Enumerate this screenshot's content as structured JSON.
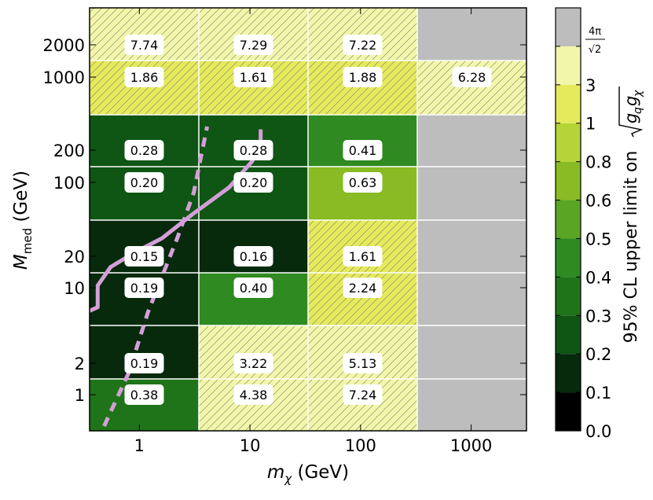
{
  "chart_data": {
    "type": "heatmap",
    "xlabel_main": "m",
    "xlabel_sub": "χ",
    "xlabel_unit": " (GeV)",
    "ylabel_main": "M",
    "ylabel_sub": "med",
    "ylabel_unit": " (GeV)",
    "x_scale": "log",
    "y_scale": "log",
    "x_ticks": [
      {
        "value": 1,
        "label": "1"
      },
      {
        "value": 10,
        "label": "10"
      },
      {
        "value": 100,
        "label": "100"
      },
      {
        "value": 1000,
        "label": "1000"
      }
    ],
    "y_ticks": [
      {
        "value": 1,
        "label": "1"
      },
      {
        "value": 2,
        "label": "2"
      },
      {
        "value": 10,
        "label": "10"
      },
      {
        "value": 20,
        "label": "20"
      },
      {
        "value": 100,
        "label": "100"
      },
      {
        "value": 200,
        "label": "200"
      },
      {
        "value": 1000,
        "label": "1000"
      },
      {
        "value": 2000,
        "label": "2000"
      }
    ],
    "cells": [
      {
        "mchi": 1,
        "mmed": 2000,
        "value": 7.74,
        "label": "7.74",
        "hatched": true
      },
      {
        "mchi": 10,
        "mmed": 2000,
        "value": 7.29,
        "label": "7.29",
        "hatched": true
      },
      {
        "mchi": 100,
        "mmed": 2000,
        "value": 7.22,
        "label": "7.22",
        "hatched": true
      },
      {
        "mchi": 1000,
        "mmed": 2000,
        "value": null,
        "label": "",
        "hatched": false
      },
      {
        "mchi": 1,
        "mmed": 1000,
        "value": 1.86,
        "label": "1.86",
        "hatched": true
      },
      {
        "mchi": 10,
        "mmed": 1000,
        "value": 1.61,
        "label": "1.61",
        "hatched": true
      },
      {
        "mchi": 100,
        "mmed": 1000,
        "value": 1.88,
        "label": "1.88",
        "hatched": true
      },
      {
        "mchi": 1000,
        "mmed": 1000,
        "value": 6.28,
        "label": "6.28",
        "hatched": true
      },
      {
        "mchi": 1,
        "mmed": 200,
        "value": 0.28,
        "label": "0.28",
        "hatched": false
      },
      {
        "mchi": 10,
        "mmed": 200,
        "value": 0.28,
        "label": "0.28",
        "hatched": false
      },
      {
        "mchi": 100,
        "mmed": 200,
        "value": 0.41,
        "label": "0.41",
        "hatched": false
      },
      {
        "mchi": 1000,
        "mmed": 200,
        "value": null,
        "label": "",
        "hatched": false
      },
      {
        "mchi": 1,
        "mmed": 100,
        "value": 0.2,
        "label": "0.20",
        "hatched": false
      },
      {
        "mchi": 10,
        "mmed": 100,
        "value": 0.2,
        "label": "0.20",
        "hatched": false
      },
      {
        "mchi": 100,
        "mmed": 100,
        "value": 0.63,
        "label": "0.63",
        "hatched": false
      },
      {
        "mchi": 1000,
        "mmed": 100,
        "value": null,
        "label": "",
        "hatched": false
      },
      {
        "mchi": 1,
        "mmed": 20,
        "value": 0.15,
        "label": "0.15",
        "hatched": false
      },
      {
        "mchi": 10,
        "mmed": 20,
        "value": 0.16,
        "label": "0.16",
        "hatched": false
      },
      {
        "mchi": 100,
        "mmed": 20,
        "value": 1.61,
        "label": "1.61",
        "hatched": true
      },
      {
        "mchi": 1000,
        "mmed": 20,
        "value": null,
        "label": "",
        "hatched": false
      },
      {
        "mchi": 1,
        "mmed": 10,
        "value": 0.19,
        "label": "0.19",
        "hatched": false
      },
      {
        "mchi": 10,
        "mmed": 10,
        "value": 0.4,
        "label": "0.40",
        "hatched": false
      },
      {
        "mchi": 100,
        "mmed": 10,
        "value": 2.24,
        "label": "2.24",
        "hatched": true
      },
      {
        "mchi": 1000,
        "mmed": 10,
        "value": null,
        "label": "",
        "hatched": false
      },
      {
        "mchi": 1,
        "mmed": 2,
        "value": 0.19,
        "label": "0.19",
        "hatched": false
      },
      {
        "mchi": 10,
        "mmed": 2,
        "value": 3.22,
        "label": "3.22",
        "hatched": true
      },
      {
        "mchi": 100,
        "mmed": 2,
        "value": 5.13,
        "label": "5.13",
        "hatched": true
      },
      {
        "mchi": 1000,
        "mmed": 2,
        "value": null,
        "label": "",
        "hatched": false
      },
      {
        "mchi": 1,
        "mmed": 1,
        "value": 0.38,
        "label": "0.38",
        "hatched": false
      },
      {
        "mchi": 10,
        "mmed": 1,
        "value": 4.38,
        "label": "4.38",
        "hatched": true
      },
      {
        "mchi": 100,
        "mmed": 1,
        "value": 7.24,
        "label": "7.24",
        "hatched": true
      },
      {
        "mchi": 1000,
        "mmed": 1,
        "value": null,
        "label": "",
        "hatched": false
      }
    ],
    "colorbar": {
      "label": "95% CL upper limit on ",
      "label_math": "√(g_q g_χ)",
      "levels": [
        {
          "from": "0.0",
          "to": "0.1",
          "color": "#000000"
        },
        {
          "from": "0.1",
          "to": "0.2",
          "color": "#062a0b"
        },
        {
          "from": "0.2",
          "to": "0.3",
          "color": "#0f5514"
        },
        {
          "from": "0.3",
          "to": "0.4",
          "color": "#1f7419"
        },
        {
          "from": "0.4",
          "to": "0.5",
          "color": "#2f8a21"
        },
        {
          "from": "0.5",
          "to": "0.6",
          "color": "#5aa624"
        },
        {
          "from": "0.6",
          "to": "0.8",
          "color": "#88bb24"
        },
        {
          "from": "0.8",
          "to": "1",
          "color": "#b5d438"
        },
        {
          "from": "1",
          "to": "3",
          "color": "#e5ea5c"
        },
        {
          "from": "3",
          "to": "4π/√2",
          "color": "#f2f6aa"
        },
        {
          "from": "4π/√2",
          "to": "",
          "color": "#bdbdbd"
        }
      ],
      "tick_labels": [
        "0.0",
        "0.1",
        "0.2",
        "0.3",
        "0.4",
        "0.5",
        "0.6",
        "0.8",
        "1",
        "3"
      ],
      "top_tick_numerator": "4π",
      "top_tick_denominator": "√2"
    },
    "curves": [
      {
        "style": "solid",
        "color": "#d49fd8",
        "points": [
          [
            0.34,
            6
          ],
          [
            0.42,
            6.6
          ],
          [
            0.42,
            10.5
          ],
          [
            0.55,
            16
          ],
          [
            0.9,
            22
          ],
          [
            1.6,
            30
          ],
          [
            3.0,
            50
          ],
          [
            6.5,
            90
          ],
          [
            10.5,
            160
          ],
          [
            12.5,
            240
          ],
          [
            12.5,
            320
          ]
        ]
      },
      {
        "style": "dashed",
        "color": "#d49fd8",
        "points": [
          [
            0.48,
            0.4
          ],
          [
            0.55,
            0.6
          ],
          [
            0.8,
            1.6
          ],
          [
            1.2,
            6
          ],
          [
            2.2,
            30
          ],
          [
            3.1,
            80
          ],
          [
            3.7,
            200
          ],
          [
            4.1,
            340
          ]
        ]
      }
    ]
  }
}
